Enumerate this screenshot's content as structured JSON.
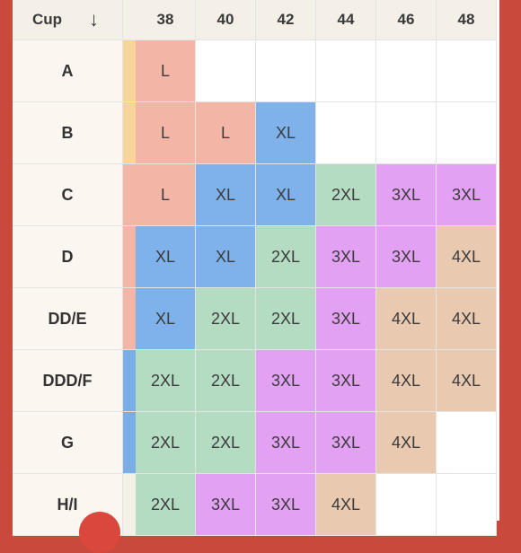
{
  "header": {
    "cup_label": "Cup",
    "sort_arrow": "↓",
    "bands": [
      "38",
      "40",
      "42",
      "44",
      "46",
      "48"
    ]
  },
  "rows": [
    {
      "cup": "A",
      "strip": "#f7d49a",
      "sizes": [
        "L",
        "",
        "",
        "",
        "",
        ""
      ]
    },
    {
      "cup": "B",
      "strip": "#f7d49a",
      "sizes": [
        "L",
        "L",
        "XL",
        "",
        "",
        ""
      ]
    },
    {
      "cup": "C",
      "strip": "#f3b6a6",
      "sizes": [
        "L",
        "XL",
        "XL",
        "2XL",
        "3XL",
        "3XL"
      ]
    },
    {
      "cup": "D",
      "strip": "#f3b6a6",
      "sizes": [
        "XL",
        "XL",
        "2XL",
        "3XL",
        "3XL",
        "4XL"
      ]
    },
    {
      "cup": "DD/E",
      "strip": "#f3b6a6",
      "sizes": [
        "XL",
        "2XL",
        "2XL",
        "3XL",
        "4XL",
        "4XL"
      ]
    },
    {
      "cup": "DDD/F",
      "strip": "#79aee6",
      "sizes": [
        "2XL",
        "2XL",
        "3XL",
        "3XL",
        "4XL",
        "4XL"
      ]
    },
    {
      "cup": "G",
      "strip": "#79aee6",
      "sizes": [
        "2XL",
        "2XL",
        "3XL",
        "3XL",
        "4XL",
        ""
      ]
    },
    {
      "cup": "H/I",
      "strip": "#f4efe7",
      "sizes": [
        "2XL",
        "3XL",
        "3XL",
        "4XL",
        "",
        ""
      ]
    }
  ],
  "size_colors": {
    "L": "#f3b6a6",
    "XL": "#7fb2ea",
    "2XL": "#b3dcc2",
    "3XL": "#e2a1f2",
    "4XL": "#e9c9b0"
  }
}
